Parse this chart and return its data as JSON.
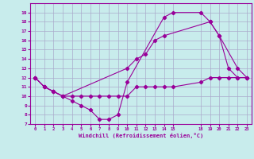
{
  "xlabel": "Windchill (Refroidissement éolien,°C)",
  "bg_color": "#c8ecec",
  "grid_color": "#aaaacc",
  "line_color": "#990099",
  "line1_x": [
    0,
    1,
    2,
    3,
    4,
    5,
    6,
    7,
    8,
    9,
    10,
    14,
    15,
    18,
    19,
    20,
    21,
    22,
    23
  ],
  "line1_y": [
    12,
    11,
    10.5,
    10,
    9.5,
    9,
    8.5,
    7.5,
    7.5,
    8,
    11.5,
    18.5,
    19,
    19,
    18,
    16.5,
    13,
    12,
    12
  ],
  "line2_x": [
    0,
    1,
    2,
    3,
    4,
    5,
    6,
    7,
    8,
    9,
    10,
    11,
    12,
    13,
    14,
    15,
    18,
    19,
    20,
    21,
    22,
    23
  ],
  "line2_y": [
    12,
    11,
    10.5,
    10,
    10,
    10,
    10,
    10,
    10,
    10,
    10,
    11,
    11,
    11,
    11,
    11,
    11.5,
    12,
    12,
    12,
    12,
    12
  ],
  "line3_x": [
    0,
    1,
    2,
    3,
    10,
    11,
    12,
    13,
    14,
    19,
    20,
    22,
    23
  ],
  "line3_y": [
    12,
    11,
    10.5,
    10,
    13,
    14,
    14.5,
    16,
    16.5,
    18,
    16.5,
    13,
    12
  ],
  "xlim": [
    -0.5,
    23.5
  ],
  "ylim": [
    7,
    20
  ],
  "xticks": [
    0,
    1,
    2,
    3,
    4,
    5,
    6,
    7,
    8,
    9,
    10,
    11,
    12,
    13,
    14,
    15,
    18,
    19,
    20,
    21,
    22,
    23
  ],
  "yticks": [
    7,
    8,
    9,
    10,
    11,
    12,
    13,
    14,
    15,
    16,
    17,
    18,
    19
  ]
}
